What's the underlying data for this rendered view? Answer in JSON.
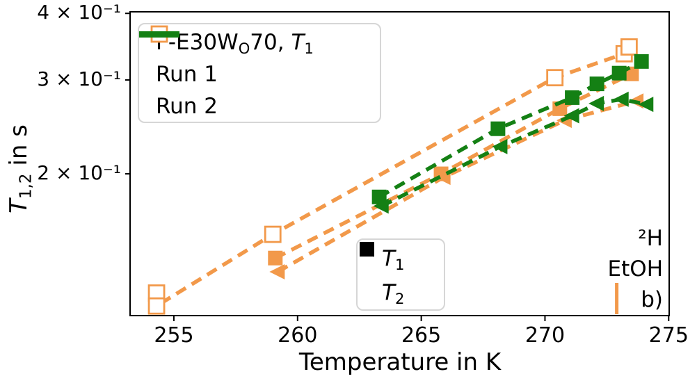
{
  "figure": {
    "xlabel": "Temperature in K",
    "ylabel": {
      "symbol": "T",
      "subscript": "1,2",
      "rest": " in s"
    }
  },
  "legend1": {
    "entries": [
      {
        "prefix": "F-E30W",
        "sub1": "O",
        "mid": "70, ",
        "symbol": "T",
        "sub2": "1"
      },
      {
        "label": "Run 1"
      },
      {
        "label": "Run 2"
      }
    ]
  },
  "legend2": {
    "entries": [
      {
        "symbol": "T",
        "sub": "1",
        "marker": "filled-square"
      },
      {
        "symbol": "T",
        "sub": "2",
        "marker": "left-triangle"
      }
    ]
  },
  "annotations": {
    "isotope": "²H",
    "solvent": "EtOH",
    "panel_label": "b)"
  },
  "colors": {
    "orange": "#f2994a",
    "green": "#148014",
    "black": "#000000",
    "legend_border": "#d6d6d6"
  },
  "chart_data": {
    "type": "line",
    "title": "",
    "xlabel": "Temperature in K",
    "ylabel": "T_{1,2} in s",
    "xscale": "linear",
    "yscale": "log",
    "xlim": [
      253.23,
      275.02
    ],
    "ylim": [
      0.1084,
      0.4027
    ],
    "grid": false,
    "x_ticks": [
      255,
      260,
      265,
      270,
      275
    ],
    "y_ticks": [
      {
        "value": 0.4,
        "label": "4 × 10⁻¹"
      },
      {
        "value": 0.3,
        "label": "3 × 10⁻¹"
      },
      {
        "value": 0.2,
        "label": "2 × 10⁻¹"
      }
    ],
    "series": [
      {
        "name": "F-E30WO70, T1",
        "color": "#f2994a",
        "marker": "open-square",
        "linestyle": "dashed",
        "points": [
          [
            254.3,
            0.1195
          ],
          [
            254.3,
            0.113
          ],
          [
            259.0,
            0.154
          ],
          [
            270.4,
            0.303
          ],
          [
            273.2,
            0.336
          ],
          [
            273.4,
            0.346
          ]
        ]
      },
      {
        "name": "Run 1, T1",
        "color": "#f2994a",
        "marker": "filled-square",
        "linestyle": "dashed",
        "points": [
          [
            259.1,
            0.139
          ],
          [
            265.8,
            0.2
          ],
          [
            270.6,
            0.265
          ],
          [
            273.5,
            0.308
          ]
        ]
      },
      {
        "name": "Run 1, T2",
        "color": "#f2994a",
        "marker": "left-triangle",
        "linestyle": "dashed",
        "points": [
          [
            259.2,
            0.131
          ],
          [
            265.9,
            0.197
          ],
          [
            270.8,
            0.252
          ],
          [
            273.7,
            0.274
          ]
        ]
      },
      {
        "name": "Run 2, T1",
        "color": "#148014",
        "marker": "filled-square",
        "linestyle": "dashed",
        "points": [
          [
            263.3,
            0.181
          ],
          [
            268.1,
            0.243
          ],
          [
            271.1,
            0.278
          ],
          [
            272.1,
            0.295
          ],
          [
            273.0,
            0.309
          ],
          [
            273.9,
            0.325
          ]
        ]
      },
      {
        "name": "Run 2, T2",
        "color": "#148014",
        "marker": "left-triangle",
        "linestyle": "dashed",
        "points": [
          [
            263.4,
            0.174
          ],
          [
            268.2,
            0.225
          ],
          [
            271.1,
            0.257
          ],
          [
            272.1,
            0.271
          ],
          [
            273.1,
            0.276
          ],
          [
            274.1,
            0.27
          ]
        ]
      }
    ],
    "annotation_marker": {
      "x": 272.9,
      "color": "#f2994a",
      "label": "²H EtOH"
    },
    "legend_position": "upper left"
  }
}
